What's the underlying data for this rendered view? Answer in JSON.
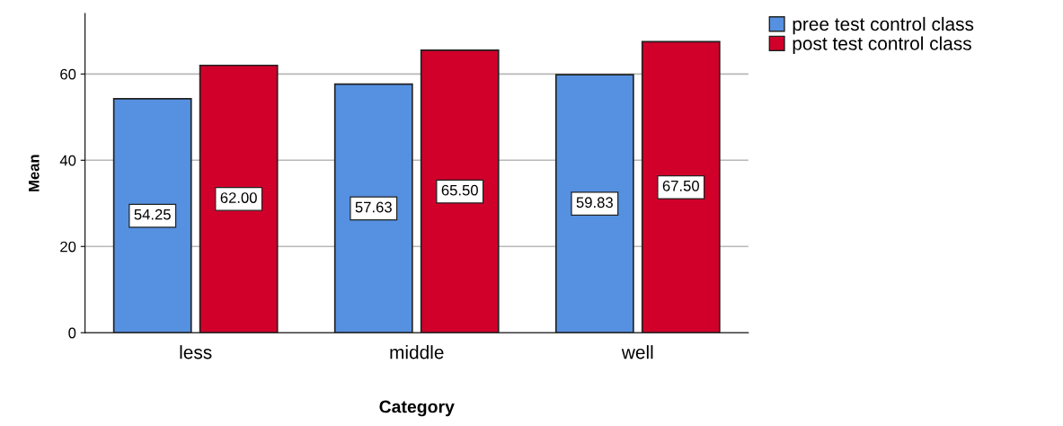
{
  "chart_data": {
    "type": "bar",
    "xlabel": "Category",
    "ylabel": "Mean",
    "categories": [
      "less",
      "middle",
      "well"
    ],
    "series": [
      {
        "name": "pree test control class",
        "color": "#5591e0",
        "values": [
          54.25,
          57.63,
          59.83
        ],
        "value_labels": [
          "54.25",
          "57.63",
          "59.83"
        ]
      },
      {
        "name": "post test control class",
        "color": "#d1002a",
        "values": [
          62.0,
          65.5,
          67.5
        ],
        "value_labels": [
          "62.00",
          "65.50",
          "67.50"
        ]
      }
    ],
    "ylim": [
      0,
      74
    ],
    "yticks": [
      0,
      20,
      40,
      60
    ],
    "grid": "y",
    "legend": "top right"
  }
}
